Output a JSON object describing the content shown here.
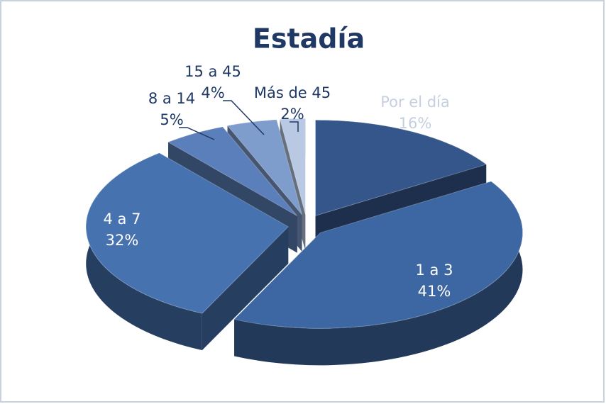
{
  "chart_data": {
    "type": "pie",
    "title": "Estadía",
    "categories": [
      "Por el día",
      "1 a 3",
      "4 a 7",
      "8 a 14",
      "15 a 45",
      "Más de 45"
    ],
    "values": [
      16,
      41,
      32,
      5,
      4,
      2
    ],
    "value_labels": [
      "16%",
      "41%",
      "32%",
      "5%",
      "4%",
      "2%"
    ],
    "colors": [
      "#34568a",
      "#3d67a3",
      "#4673b0",
      "#5b7fba",
      "#7f9dcc",
      "#b9c9e4"
    ]
  }
}
